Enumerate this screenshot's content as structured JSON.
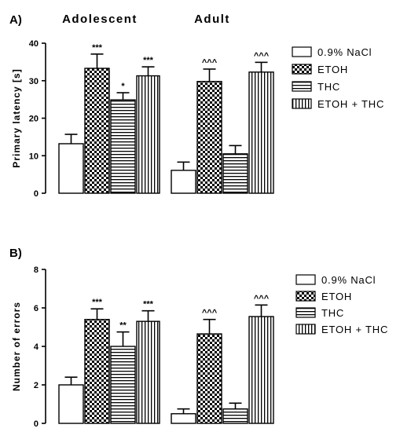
{
  "chart_data": [
    {
      "type": "bar",
      "panel_label": "A)",
      "title": "",
      "groups": [
        "Adolescent",
        "Adult"
      ],
      "ylabel": "Primary latency [s]",
      "ylim": [
        0,
        40
      ],
      "yticks": [
        0,
        10,
        20,
        30,
        40
      ],
      "legend_position": "right",
      "series": [
        {
          "name": "0.9% NaCl",
          "pattern": "none",
          "values": [
            13.2,
            6.1
          ],
          "errors": [
            2.5,
            2.2
          ],
          "annotations": [
            "",
            ""
          ]
        },
        {
          "name": "ETOH",
          "pattern": "checker",
          "values": [
            33.3,
            29.8
          ],
          "errors": [
            3.8,
            3.3
          ],
          "annotations": [
            "***",
            "^^^"
          ]
        },
        {
          "name": "THC",
          "pattern": "horizontal",
          "values": [
            24.9,
            10.5
          ],
          "errors": [
            1.9,
            2.2
          ],
          "annotations": [
            "*",
            ""
          ]
        },
        {
          "name": "ETOH + THC",
          "pattern": "vertical",
          "values": [
            31.3,
            32.3
          ],
          "errors": [
            2.4,
            2.6
          ],
          "annotations": [
            "***",
            "^^^"
          ]
        }
      ]
    },
    {
      "type": "bar",
      "panel_label": "B)",
      "title": "",
      "groups": [
        "Adolescent",
        "Adult"
      ],
      "ylabel": "Number of errors",
      "ylim": [
        0,
        8
      ],
      "yticks": [
        0,
        2,
        4,
        6,
        8
      ],
      "legend_position": "right",
      "series": [
        {
          "name": "0.9% NaCl",
          "pattern": "none",
          "values": [
            2.0,
            0.5
          ],
          "errors": [
            0.4,
            0.25
          ],
          "annotations": [
            "",
            ""
          ]
        },
        {
          "name": "ETOH",
          "pattern": "checker",
          "values": [
            5.4,
            4.65
          ],
          "errors": [
            0.55,
            0.75
          ],
          "annotations": [
            "***",
            "^^^"
          ]
        },
        {
          "name": "THC",
          "pattern": "horizontal",
          "values": [
            4.0,
            0.75
          ],
          "errors": [
            0.75,
            0.3
          ],
          "annotations": [
            "**",
            ""
          ]
        },
        {
          "name": "ETOH + THC",
          "pattern": "vertical",
          "values": [
            5.3,
            5.55
          ],
          "errors": [
            0.55,
            0.6
          ],
          "annotations": [
            "***",
            "^^^"
          ]
        }
      ]
    }
  ]
}
